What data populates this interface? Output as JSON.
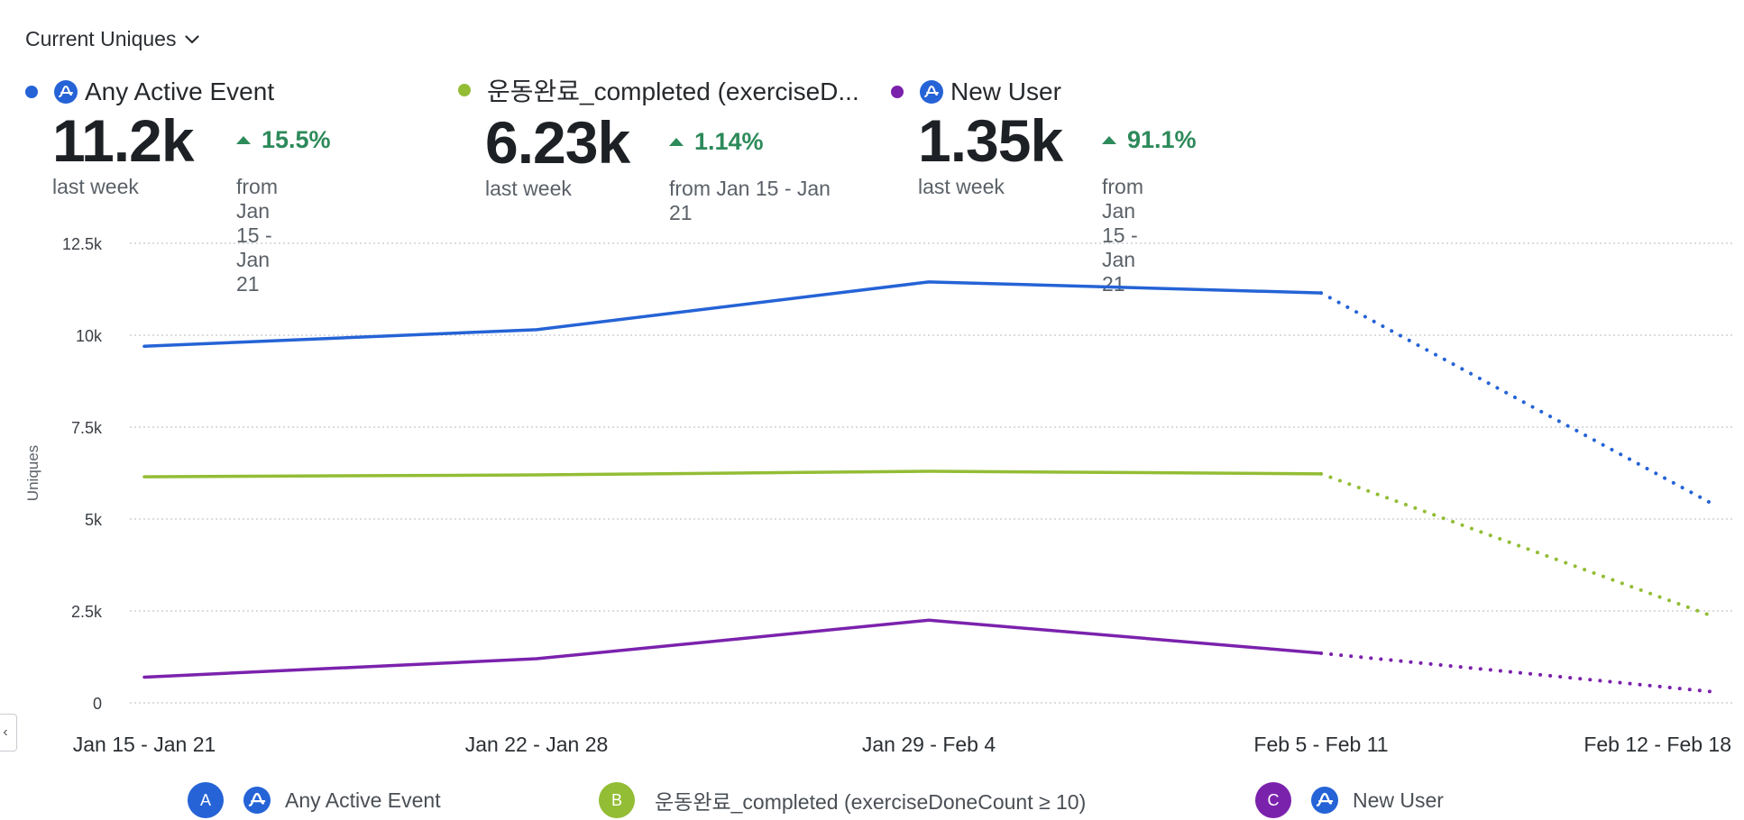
{
  "metric_selector": {
    "label": "Current Uniques"
  },
  "cards": [
    {
      "name": "Any Active Event",
      "value": "11.2k",
      "sub": "last week",
      "delta": "15.5%",
      "from": "from Jan 15 - Jan 21",
      "color": "#2563d6",
      "has_icon": true
    },
    {
      "name": "운동완료_completed (exerciseD...",
      "value": "6.23k",
      "sub": "last week",
      "delta": "1.14%",
      "from": "from Jan 15 - Jan 21",
      "color": "#93bd35",
      "has_icon": false
    },
    {
      "name": "New User",
      "value": "1.35k",
      "sub": "last week",
      "delta": "91.1%",
      "from": "from Jan 15 - Jan 21",
      "color": "#7b22ad",
      "has_icon": true
    }
  ],
  "chart_data": {
    "type": "line",
    "ylabel": "Uniques",
    "ylim": [
      0,
      12500
    ],
    "yticks": [
      0,
      2500,
      5000,
      7500,
      10000,
      12500
    ],
    "ytick_labels": [
      "0",
      "2.5k",
      "5k",
      "7.5k",
      "10k",
      "12.5k"
    ],
    "categories": [
      "Jan 15 - Jan 21",
      "Jan 22 - Jan 28",
      "Jan 29 - Feb 4",
      "Feb 5 - Feb 11",
      "Feb 12 - Feb 18"
    ],
    "incomplete_last_period": true,
    "grid": true,
    "series": [
      {
        "name": "Any Active Event",
        "color": "#2563d6",
        "values": [
          9700,
          10150,
          11450,
          11150,
          5400
        ]
      },
      {
        "name": "운동완료_completed (exerciseDoneCount ≥ 10)",
        "color": "#93bd35",
        "values": [
          6150,
          6200,
          6300,
          6230,
          2350
        ]
      },
      {
        "name": "New User",
        "color": "#7b22ad",
        "values": [
          700,
          1200,
          2250,
          1350,
          300
        ]
      }
    ]
  },
  "legend": [
    {
      "letter": "A",
      "label": "Any Active Event",
      "color": "#2563d6",
      "has_icon": true
    },
    {
      "letter": "B",
      "label": "운동완료_completed (exerciseDoneCount ≥ 10)",
      "color": "#93bd35",
      "has_icon": false
    },
    {
      "letter": "C",
      "label": "New User",
      "color": "#7b22ad",
      "has_icon": true
    }
  ]
}
